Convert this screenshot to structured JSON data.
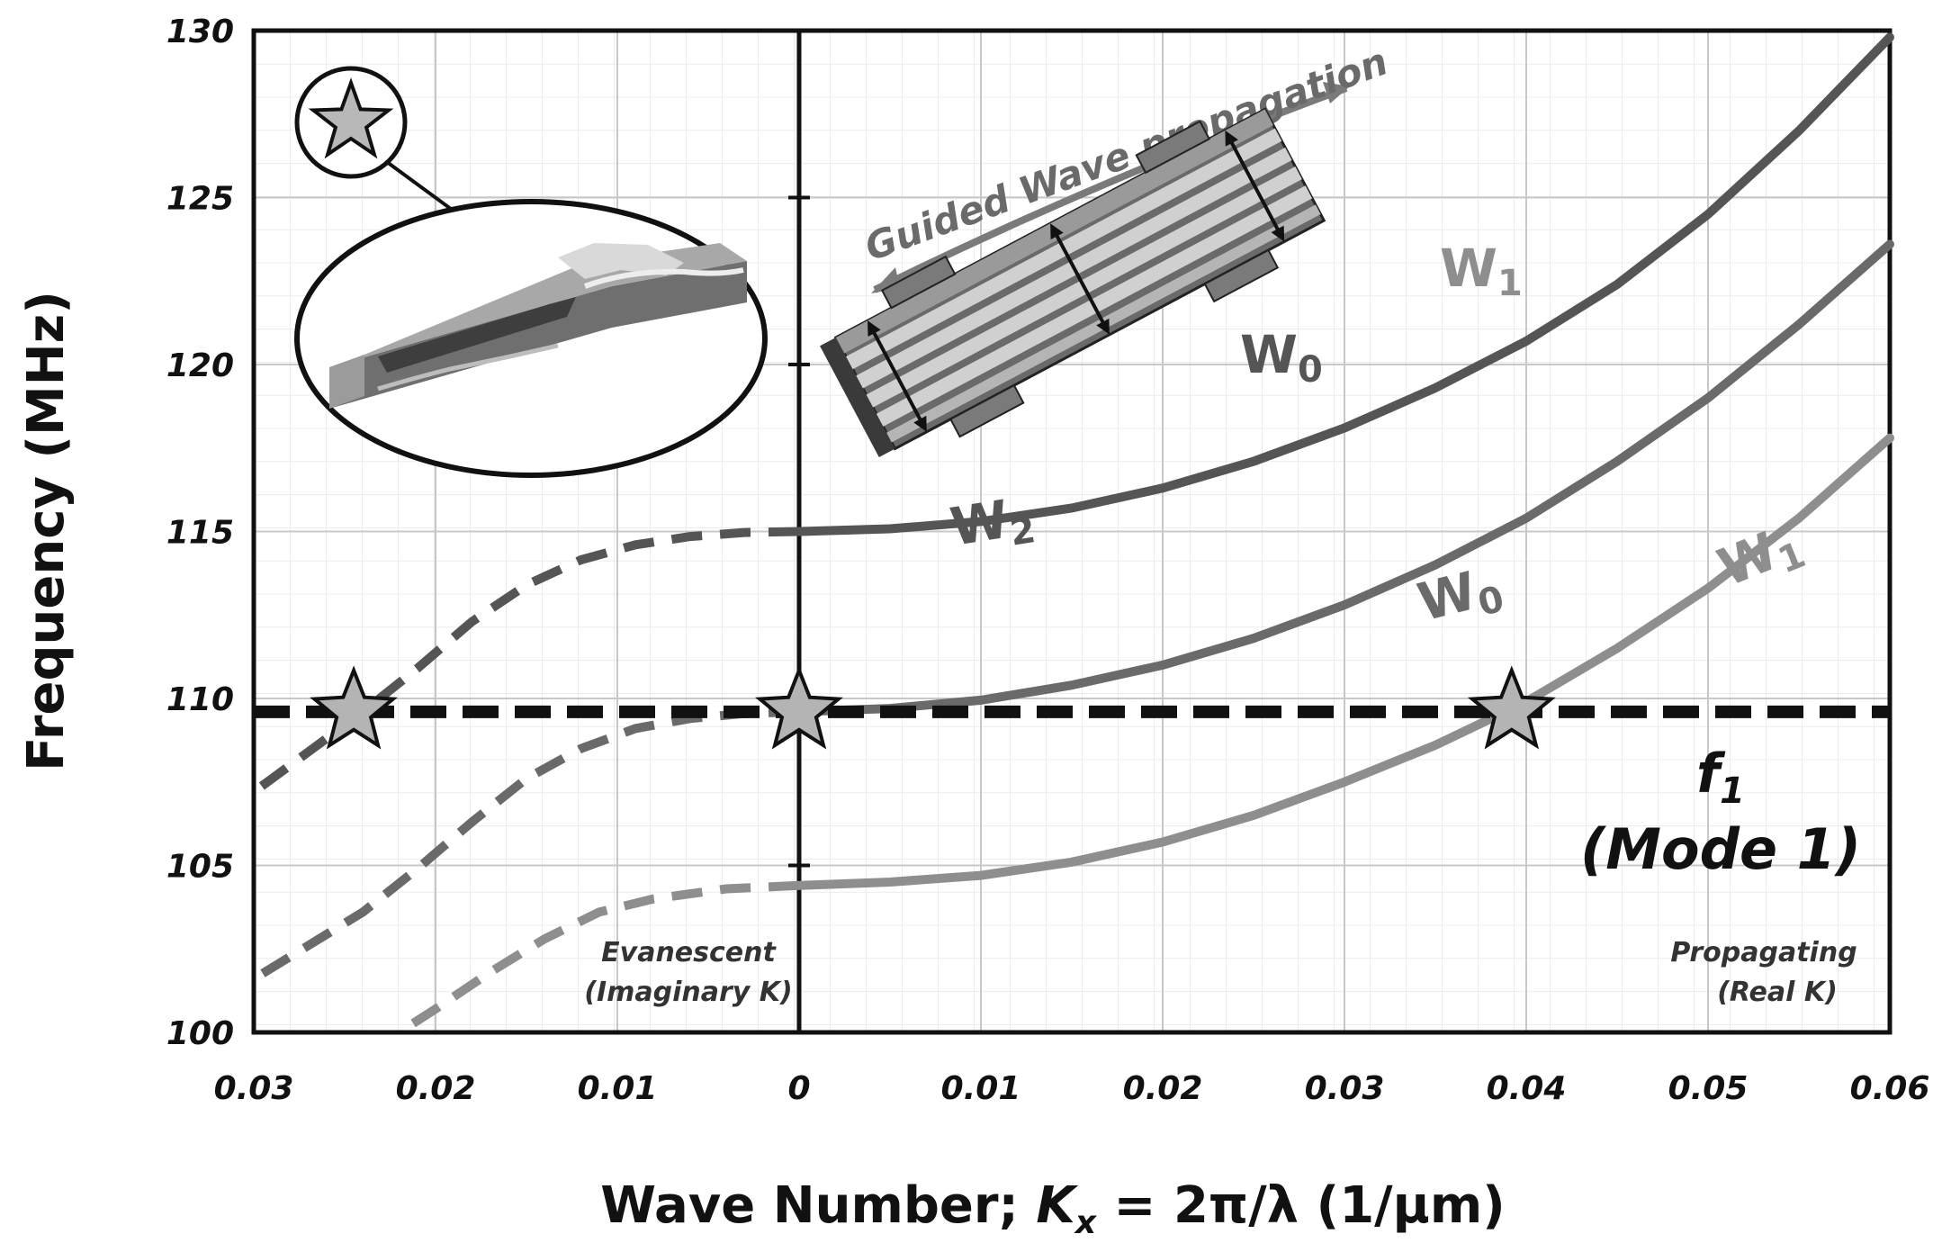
{
  "chart_data": {
    "type": "line",
    "title": "",
    "xlabel": "Wave Number; K_x = 2π/λ (1/μm)",
    "xlabel_parts": {
      "prefix": "Wave Number; ",
      "k": "K",
      "sub": "x",
      "suffix": " = 2π/λ (1/μm)"
    },
    "ylabel": "Frequency (MHz)",
    "xlim": [
      -0.03,
      0.06
    ],
    "ylim": [
      100,
      130
    ],
    "x_ticks": [
      {
        "v": -0.03,
        "label": "0.03"
      },
      {
        "v": -0.02,
        "label": "0.02"
      },
      {
        "v": -0.01,
        "label": "0.01"
      },
      {
        "v": 0,
        "label": "0"
      },
      {
        "v": 0.01,
        "label": "0.01"
      },
      {
        "v": 0.02,
        "label": "0.02"
      },
      {
        "v": 0.03,
        "label": "0.03"
      },
      {
        "v": 0.04,
        "label": "0.04"
      },
      {
        "v": 0.05,
        "label": "0.05"
      },
      {
        "v": 0.06,
        "label": "0.06"
      }
    ],
    "y_ticks": [
      100,
      105,
      110,
      115,
      120,
      125,
      130
    ],
    "grid": true,
    "series": [
      {
        "name": "W2",
        "label_main": "W",
        "label_sub": "2",
        "color": "#555555",
        "propagating": {
          "x": [
            0,
            0.005,
            0.01,
            0.015,
            0.02,
            0.025,
            0.03,
            0.035,
            0.04,
            0.045,
            0.05,
            0.055,
            0.06
          ],
          "y": [
            115.0,
            115.08,
            115.3,
            115.7,
            116.3,
            117.1,
            118.1,
            119.3,
            120.7,
            122.4,
            124.5,
            127.0,
            129.8
          ]
        },
        "evanescent": {
          "x": [
            0,
            -0.003,
            -0.006,
            -0.009,
            -0.012,
            -0.015,
            -0.018,
            -0.021,
            -0.024,
            -0.027,
            -0.03
          ],
          "y": [
            115.0,
            114.97,
            114.85,
            114.6,
            114.15,
            113.4,
            112.3,
            110.9,
            109.6,
            108.4,
            107.2
          ]
        }
      },
      {
        "name": "W0",
        "label_main": "W",
        "label_sub": "0",
        "color": "#6a6a6a",
        "propagating": {
          "x": [
            0,
            0.005,
            0.01,
            0.015,
            0.02,
            0.025,
            0.03,
            0.035,
            0.04,
            0.045,
            0.05,
            0.055,
            0.06
          ],
          "y": [
            109.6,
            109.7,
            109.95,
            110.4,
            111.0,
            111.8,
            112.8,
            114.0,
            115.4,
            117.1,
            119.0,
            121.2,
            123.6
          ]
        },
        "evanescent": {
          "x": [
            0,
            -0.003,
            -0.006,
            -0.009,
            -0.012,
            -0.015,
            -0.018,
            -0.021,
            -0.024,
            -0.027,
            -0.03
          ],
          "y": [
            109.6,
            109.55,
            109.4,
            109.1,
            108.5,
            107.6,
            106.3,
            104.9,
            103.6,
            102.6,
            101.6
          ]
        }
      },
      {
        "name": "W1",
        "label_main": "W",
        "label_sub": "1",
        "color": "#8e8e8e",
        "propagating": {
          "x": [
            0,
            0.005,
            0.01,
            0.015,
            0.02,
            0.025,
            0.03,
            0.035,
            0.04,
            0.045,
            0.05,
            0.055,
            0.06
          ],
          "y": [
            104.4,
            104.5,
            104.7,
            105.1,
            105.7,
            106.5,
            107.5,
            108.6,
            109.9,
            111.5,
            113.3,
            115.4,
            117.8
          ]
        },
        "evanescent": {
          "x": [
            0,
            -0.004,
            -0.008,
            -0.011,
            -0.014,
            -0.017,
            -0.02,
            -0.022
          ],
          "y": [
            104.4,
            104.3,
            104.0,
            103.6,
            102.8,
            101.8,
            100.7,
            100.0
          ]
        }
      }
    ],
    "reference_line": {
      "y": 109.6,
      "label": "f",
      "label_sub": "1",
      "label2": "(Mode 1)"
    },
    "markers": [
      {
        "x": -0.0245,
        "y": 109.6
      },
      {
        "x": 0,
        "y": 109.6
      },
      {
        "x": 0.0392,
        "y": 109.6
      }
    ],
    "region_labels": {
      "evanescent_1": "Evanescent",
      "evanescent_2": "(Imaginary K)",
      "propagating_1": "Propagating",
      "propagating_2": "(Real K)"
    },
    "inset": {
      "arrow_label": "Guided Wave propagation",
      "w0_main": "W",
      "w0_sub": "0",
      "w1_main": "W",
      "w1_sub": "1"
    }
  }
}
